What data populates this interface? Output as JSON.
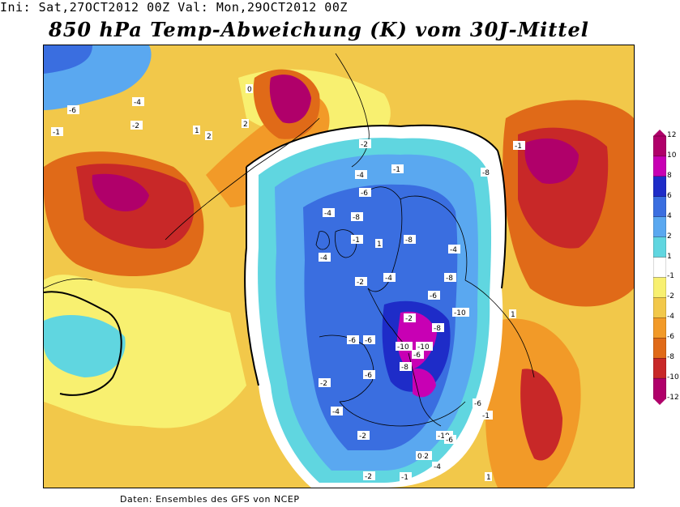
{
  "header": {
    "text": "Ini: Sat,27OCT2012 00Z Val: Mon,29OCT2012 00Z"
  },
  "title": "850 hPa Temp-Abweichung (K) vom 30J-Mittel",
  "footer": "Daten: Ensembles des GFS von NCEP",
  "colorbar": {
    "colors": [
      "#b0006a",
      "#c800b4",
      "#1e2cc8",
      "#3a6ee0",
      "#5aa8f0",
      "#60d6e0",
      "#ffffff",
      "#f8f070",
      "#f2c84a",
      "#f29a28",
      "#e06a18",
      "#c82828",
      "#b0006a"
    ],
    "ticks": [
      "12",
      "10",
      "8",
      "6",
      "4",
      "2",
      "1",
      "-1",
      "-2",
      "-4",
      "-6",
      "-8",
      "-10",
      "-12"
    ]
  },
  "map_labels": [
    "-6",
    "-4",
    "-2",
    "-1",
    "1",
    "2",
    "0",
    "-6",
    "-4",
    "-2",
    "-1",
    "-4",
    "-2",
    "-4",
    "-1",
    "-8",
    "-6",
    "-4",
    "-2",
    "-6",
    "-8",
    "-10",
    "-10",
    "-10",
    "-8",
    "-6",
    "-6",
    "-4",
    "-2",
    "-6",
    "-4",
    "-2",
    "-2",
    "1",
    "-1",
    "0",
    "1",
    "-1",
    "2",
    "1",
    "-8",
    "-8",
    "-6",
    "-8",
    "-10",
    "-6",
    "-4",
    "-2",
    "-1"
  ]
}
